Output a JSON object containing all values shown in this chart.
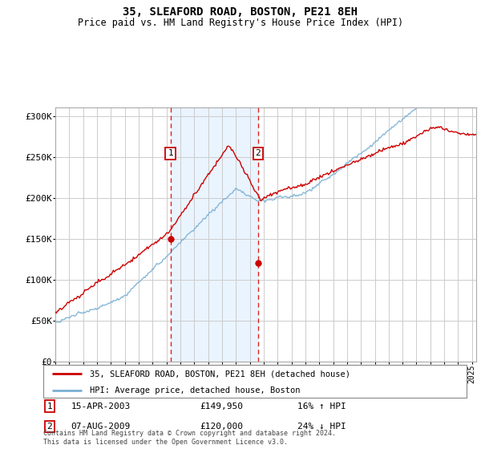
{
  "title": "35, SLEAFORD ROAD, BOSTON, PE21 8EH",
  "subtitle": "Price paid vs. HM Land Registry's House Price Index (HPI)",
  "hpi_color": "#7ab0d4",
  "price_color": "#cc0000",
  "marker_color": "#cc0000",
  "bg_shade_color": "#ddeeff",
  "ylim": [
    0,
    310000
  ],
  "yticks": [
    0,
    50000,
    100000,
    150000,
    200000,
    250000,
    300000
  ],
  "ytick_labels": [
    "£0",
    "£50K",
    "£100K",
    "£150K",
    "£200K",
    "£250K",
    "£300K"
  ],
  "legend_line1": "35, SLEAFORD ROAD, BOSTON, PE21 8EH (detached house)",
  "legend_line2": "HPI: Average price, detached house, Boston",
  "transaction1_date": "15-APR-2003",
  "transaction1_price": "£149,950",
  "transaction1_hpi": "16% ↑ HPI",
  "transaction1_year": 2003.29,
  "transaction1_value": 149950,
  "transaction2_date": "07-AUG-2009",
  "transaction2_price": "£120,000",
  "transaction2_hpi": "24% ↓ HPI",
  "transaction2_year": 2009.6,
  "transaction2_value": 120000,
  "footer": "Contains HM Land Registry data © Crown copyright and database right 2024.\nThis data is licensed under the Open Government Licence v3.0.",
  "shade_x1": 2003.29,
  "shade_x2": 2009.6,
  "xlim_start": 1995,
  "xlim_end": 2025.3
}
